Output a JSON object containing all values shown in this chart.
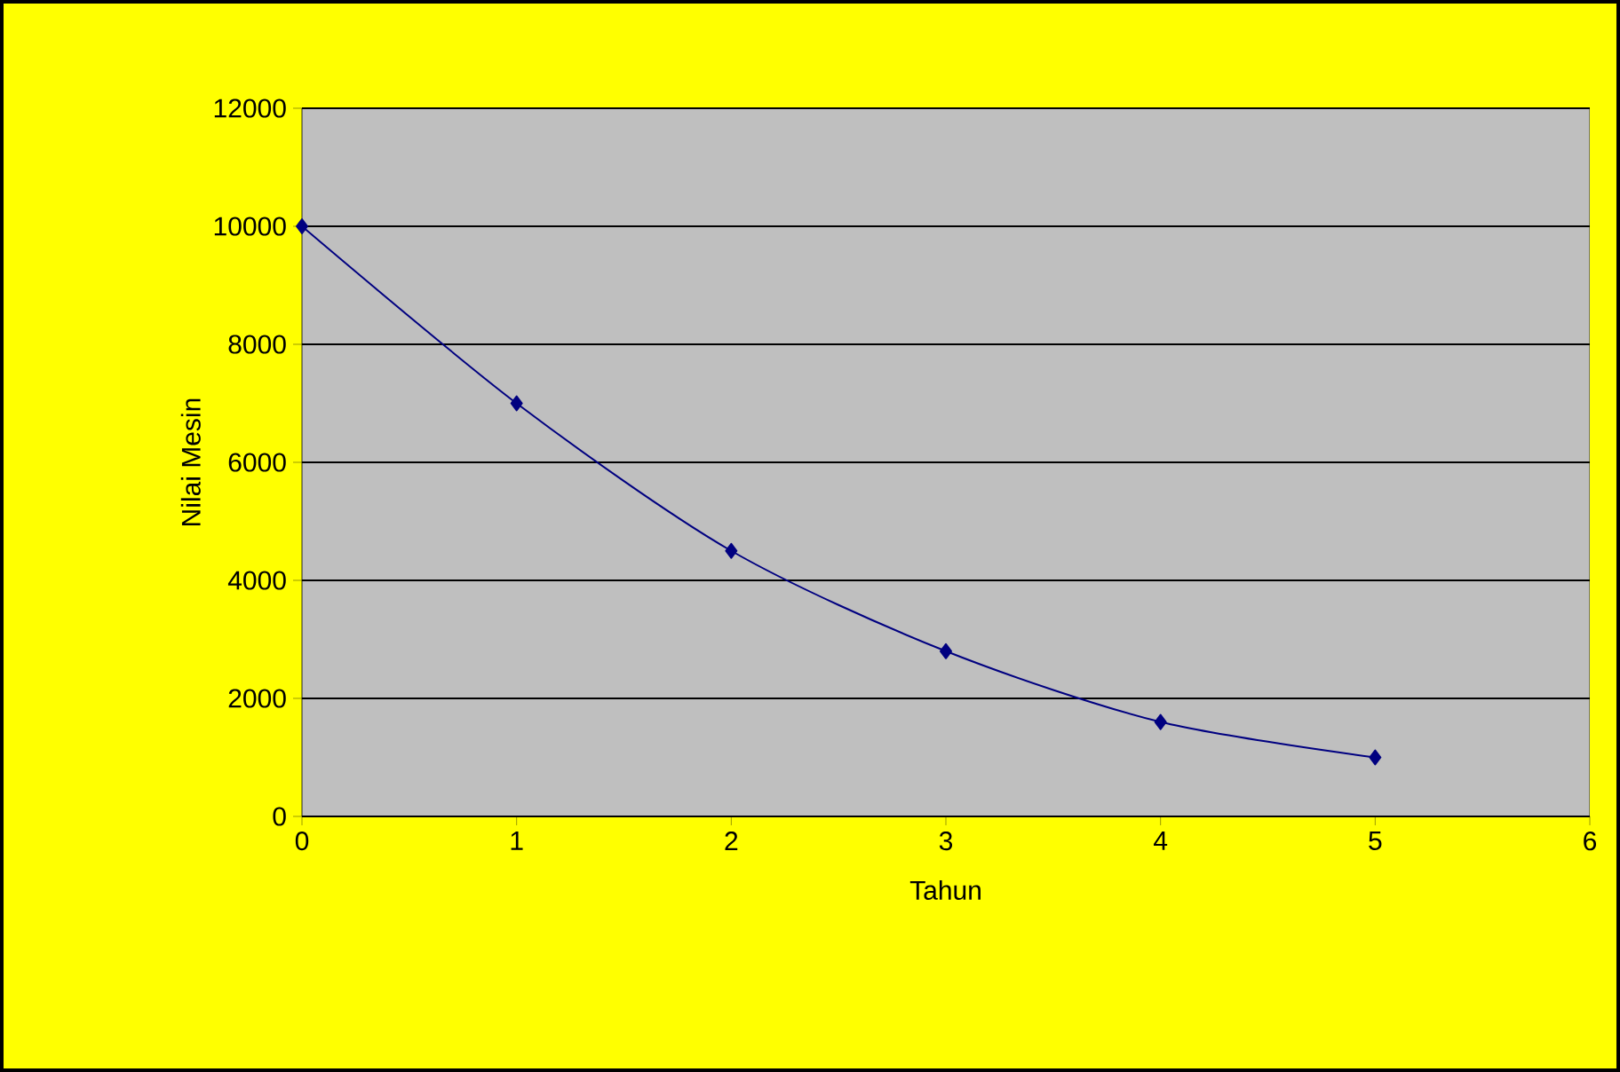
{
  "chart_data": {
    "type": "line",
    "xlabel": "Tahun",
    "ylabel": "Nilai Mesin",
    "x": [
      0,
      1,
      2,
      3,
      4,
      5
    ],
    "series": [
      {
        "color": "#000080",
        "values": [
          10000,
          7000,
          4500,
          2800,
          1600,
          1000
        ]
      }
    ],
    "xlim": [
      0,
      6
    ],
    "xticks": [
      0,
      1,
      2,
      3,
      4,
      5,
      6
    ],
    "ylim": [
      0,
      12000
    ],
    "yticks": [
      0,
      2000,
      4000,
      6000,
      8000,
      10000,
      12000
    ],
    "grid": "y",
    "marker": "diamond",
    "line_style": "solid"
  }
}
